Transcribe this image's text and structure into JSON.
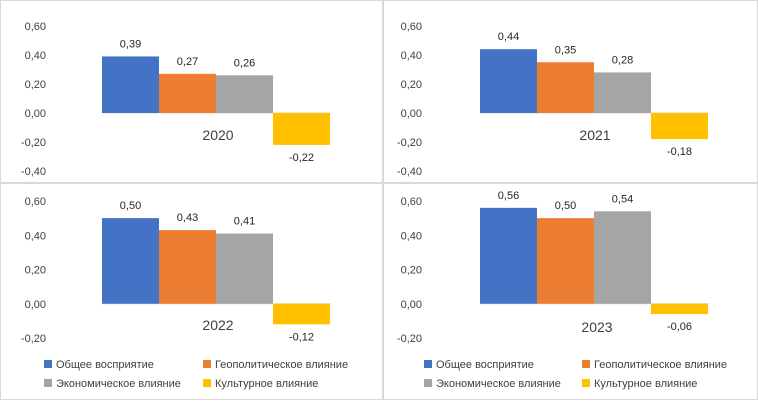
{
  "chart_data": [
    {
      "type": "bar",
      "categories": [
        "Общее восприятие",
        "Геополитическое влияние",
        "Экономическое влияние",
        "Культурное влияние"
      ],
      "values": [
        0.39,
        0.27,
        0.26,
        -0.22
      ],
      "value_labels": [
        "0,39",
        "0,27",
        "0,26",
        "-0,22"
      ],
      "label": "2020",
      "ylim": [
        -0.4,
        0.6
      ],
      "yticks": [
        "0,60",
        "0,40",
        "0,20",
        "0,00",
        "-0,20",
        "-0,40"
      ],
      "grid": false,
      "legend": false
    },
    {
      "type": "bar",
      "categories": [
        "Общее восприятие",
        "Геополитическое влияние",
        "Экономическое влияние",
        "Культурное влияние"
      ],
      "values": [
        0.44,
        0.35,
        0.28,
        -0.18
      ],
      "value_labels": [
        "0,44",
        "0,35",
        "0,28",
        "-0,18"
      ],
      "label": "2021",
      "ylim": [
        -0.4,
        0.6
      ],
      "yticks": [
        "0,60",
        "0,40",
        "0,20",
        "0,00",
        "-0,20",
        "-0,40"
      ],
      "grid": false,
      "legend": false
    },
    {
      "type": "bar",
      "categories": [
        "Общее восприятие",
        "Геополитическое влияние",
        "Экономическое влияние",
        "Культурное влияние"
      ],
      "values": [
        0.5,
        0.43,
        0.41,
        -0.12
      ],
      "value_labels": [
        "0,50",
        "0,43",
        "0,41",
        "-0,12"
      ],
      "label": "2022",
      "ylim": [
        -0.2,
        0.6
      ],
      "yticks": [
        "0,60",
        "0,40",
        "0,20",
        "0,00",
        "-0,20"
      ],
      "grid": false,
      "legend": "bottom"
    },
    {
      "type": "bar",
      "categories": [
        "Общее восприятие",
        "Геополитическое влияние",
        "Экономическое влияние",
        "Культурное влияние"
      ],
      "values": [
        0.56,
        0.5,
        0.54,
        -0.06
      ],
      "value_labels": [
        "0,56",
        "0,50",
        "0,54",
        "-0,06"
      ],
      "label": "2023",
      "ylim": [
        -0.2,
        0.6
      ],
      "yticks": [
        "0,60",
        "0,40",
        "0,20",
        "0,00",
        "-0,20"
      ],
      "grid": false,
      "legend": "bottom"
    }
  ],
  "legend_labels": [
    "Общее восприятие",
    "Геополитическое влияние",
    "Экономическое влияние",
    "Культурное влияние"
  ],
  "colors": [
    "#4472c4",
    "#ed7d31",
    "#a5a5a5",
    "#ffc000"
  ]
}
